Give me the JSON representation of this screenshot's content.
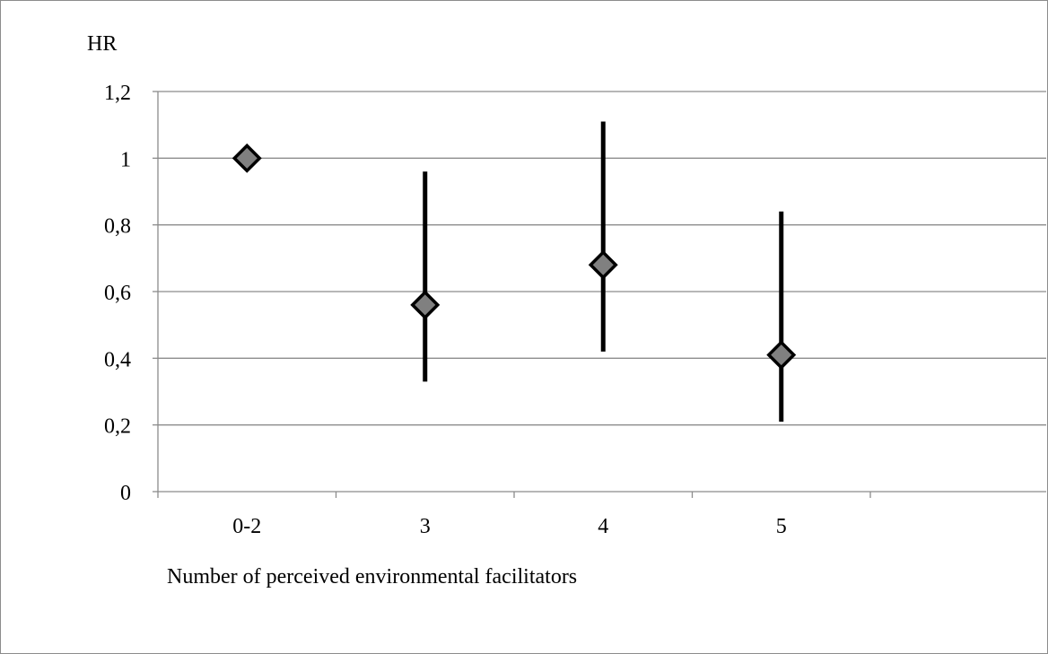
{
  "chart_data": {
    "type": "scatter",
    "title": "",
    "ylabel": "HR",
    "xlabel": "Number of perceived environmental facilitators",
    "categories": [
      "0-2",
      "3",
      "4",
      "5"
    ],
    "y_tick_labels": [
      "0",
      "0,2",
      "0,4",
      "0,6",
      "0,8",
      "1",
      "1,2"
    ],
    "ylim": [
      0,
      1.2
    ],
    "ytick_step": 0.2,
    "grid": true,
    "legend": "none",
    "points": [
      {
        "category": "0-2",
        "hr": 1.0,
        "ci_low": null,
        "ci_high": null
      },
      {
        "category": "3",
        "hr": 0.56,
        "ci_low": 0.33,
        "ci_high": 0.96
      },
      {
        "category": "4",
        "hr": 0.68,
        "ci_low": 0.42,
        "ci_high": 1.11
      },
      {
        "category": "5",
        "hr": 0.41,
        "ci_low": 0.21,
        "ci_high": 0.84
      }
    ]
  },
  "colors": {
    "marker_fill": "#808080",
    "marker_stroke": "#000000",
    "error_bar": "#000000",
    "grid": "#8c8c8c",
    "axis": "#8c8c8c"
  }
}
